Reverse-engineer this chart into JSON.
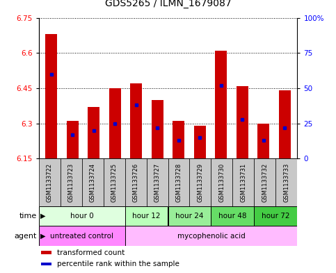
{
  "title": "GDS5265 / ILMN_1679087",
  "samples": [
    "GSM1133722",
    "GSM1133723",
    "GSM1133724",
    "GSM1133725",
    "GSM1133726",
    "GSM1133727",
    "GSM1133728",
    "GSM1133729",
    "GSM1133730",
    "GSM1133731",
    "GSM1133732",
    "GSM1133733"
  ],
  "transformed_count": [
    6.68,
    6.31,
    6.37,
    6.45,
    6.47,
    6.4,
    6.31,
    6.29,
    6.61,
    6.46,
    6.3,
    6.44
  ],
  "percentile_rank": [
    60,
    17,
    20,
    25,
    38,
    22,
    13,
    15,
    52,
    28,
    13,
    22
  ],
  "ylim_left": [
    6.15,
    6.75
  ],
  "ylim_right": [
    0,
    100
  ],
  "left_yticks": [
    6.15,
    6.3,
    6.45,
    6.6,
    6.75
  ],
  "right_yticks": [
    0,
    25,
    50,
    75,
    100
  ],
  "right_ytick_labels": [
    "0",
    "25",
    "50",
    "75",
    "100%"
  ],
  "time_groups": [
    {
      "label": "hour 0",
      "start": 0,
      "end": 4,
      "color": "#dfffdf"
    },
    {
      "label": "hour 12",
      "start": 4,
      "end": 6,
      "color": "#bbffbb"
    },
    {
      "label": "hour 24",
      "start": 6,
      "end": 8,
      "color": "#99ee99"
    },
    {
      "label": "hour 48",
      "start": 8,
      "end": 10,
      "color": "#66dd66"
    },
    {
      "label": "hour 72",
      "start": 10,
      "end": 12,
      "color": "#44cc44"
    }
  ],
  "agent_groups": [
    {
      "label": "untreated control",
      "start": 0,
      "end": 4,
      "color": "#ff88ff"
    },
    {
      "label": "mycophenolic acid",
      "start": 4,
      "end": 12,
      "color": "#ffbbff"
    }
  ],
  "bar_color": "#cc0000",
  "percentile_color": "#0000cc",
  "bar_bottom": 6.15,
  "legend_items": [
    {
      "label": "transformed count",
      "color": "#cc0000"
    },
    {
      "label": "percentile rank within the sample",
      "color": "#0000cc"
    }
  ],
  "sample_bg_color": "#c8c8c8",
  "title_fontsize": 10,
  "tick_fontsize": 7.5,
  "bar_width": 0.55
}
